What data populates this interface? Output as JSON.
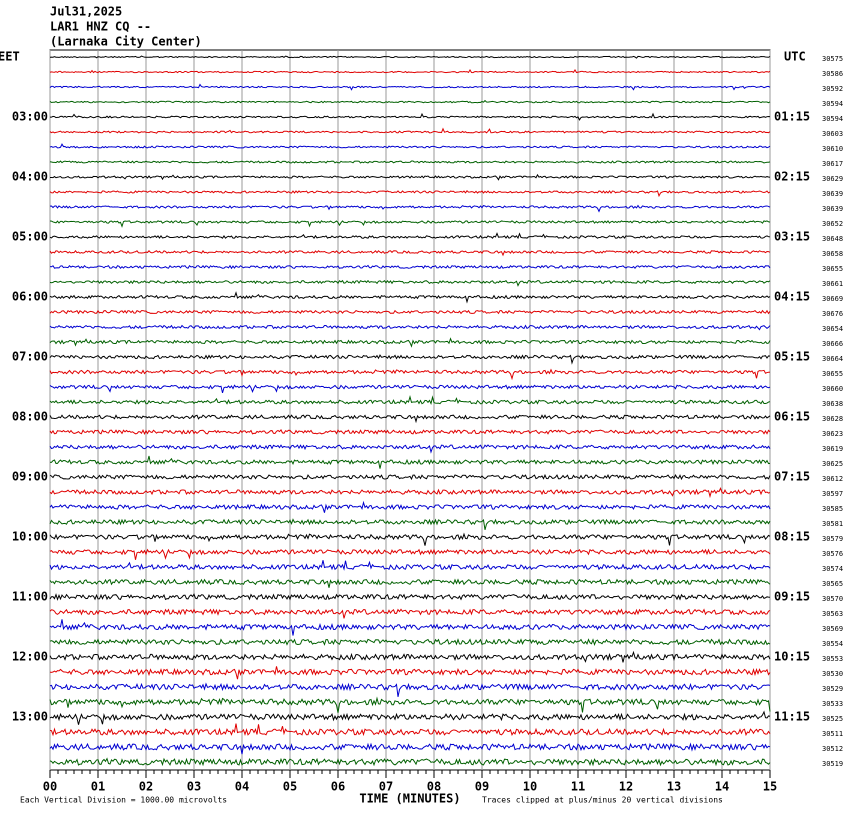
{
  "header": {
    "date": "Jul31,2025",
    "station": "LAR1 HNZ CQ --",
    "location": "(Larnaka City Center)"
  },
  "left_axis": {
    "title": "EET",
    "labels": [
      "03:00",
      "04:00",
      "05:00",
      "06:00",
      "07:00",
      "08:00",
      "09:00",
      "10:00",
      "11:00",
      "12:00",
      "13:00"
    ]
  },
  "right_axis": {
    "title": "UTC",
    "labels": [
      "01:15",
      "02:15",
      "03:15",
      "04:15",
      "05:15",
      "06:15",
      "07:15",
      "08:15",
      "09:15",
      "10:15",
      "11:15"
    ]
  },
  "trace_values": [
    30575,
    30586,
    30592,
    30594,
    30594,
    30603,
    30610,
    30617,
    30629,
    30639,
    30639,
    30652,
    30648,
    30658,
    30655,
    30661,
    30669,
    30676,
    30654,
    30666,
    30664,
    30655,
    30660,
    30638,
    30628,
    30623,
    30619,
    30625,
    30612,
    30597,
    30585,
    30581,
    30579,
    30576,
    30574,
    30565,
    30570,
    30563,
    30569,
    30554,
    30553,
    30530,
    30529,
    30533,
    30525,
    30511,
    30512,
    30519
  ],
  "trace_colors": [
    "#000000",
    "#e00000",
    "#0000d0",
    "#006000"
  ],
  "x_axis": {
    "title": "TIME (MINUTES)",
    "ticks": [
      "00",
      "01",
      "02",
      "03",
      "04",
      "05",
      "06",
      "07",
      "08",
      "09",
      "10",
      "11",
      "12",
      "13",
      "14",
      "15"
    ]
  },
  "footer": {
    "left": "Each Vertical Division = 1000.00 microvolts",
    "right": "Traces clipped at plus/minus 20 vertical divisions"
  }
}
